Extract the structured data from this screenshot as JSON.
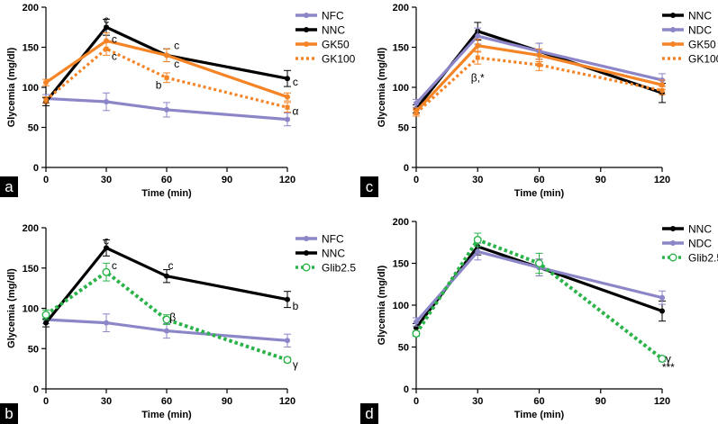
{
  "figure": {
    "colors": {
      "NFC": "#8c86c9",
      "NDC": "#8c86c9",
      "NNC": "#000000",
      "GK50": "#f58426",
      "GK100": "#f58426",
      "Glib2.5": "#2bb34a",
      "panel_letter_bg": "#000000"
    }
  },
  "chart_data": [
    {
      "panel": "a",
      "type": "line",
      "xlabel": "Time (min)",
      "ylabel": "Glycemia (mg/dl)",
      "xlim": [
        0,
        120
      ],
      "ylim": [
        0,
        200
      ],
      "xticks": [
        0,
        30,
        60,
        90,
        120
      ],
      "yticks": [
        0,
        50,
        100,
        150,
        200
      ],
      "legend_position": "top-right",
      "series": [
        {
          "name": "NFC",
          "x": [
            0,
            30,
            60,
            120
          ],
          "values": [
            86,
            82,
            72,
            60
          ],
          "errors": [
            5,
            11,
            9,
            8
          ],
          "style": "solid"
        },
        {
          "name": "NNC",
          "x": [
            0,
            30,
            60,
            120
          ],
          "values": [
            82,
            175,
            140,
            111
          ],
          "errors": [
            5,
            10,
            8,
            10
          ],
          "style": "solid"
        },
        {
          "name": "GK50",
          "x": [
            0,
            30,
            60,
            120
          ],
          "values": [
            106,
            158,
            140,
            88
          ],
          "errors": [
            4,
            10,
            8,
            5
          ],
          "style": "solid"
        },
        {
          "name": "GK100",
          "x": [
            0,
            30,
            60,
            120
          ],
          "values": [
            84,
            148,
            112,
            75
          ],
          "errors": [
            4,
            8,
            6,
            6
          ],
          "style": "dotted"
        }
      ],
      "annotations": [
        {
          "text": "c",
          "x": 30,
          "y": 184
        },
        {
          "text": "c",
          "x": 34,
          "y": 160
        },
        {
          "text": "c",
          "x": 34,
          "y": 139
        },
        {
          "text": "c",
          "x": 65,
          "y": 152
        },
        {
          "text": "c",
          "x": 65,
          "y": 129
        },
        {
          "text": "b",
          "x": 56,
          "y": 103
        },
        {
          "text": "c",
          "x": 124,
          "y": 107
        },
        {
          "text": "α",
          "x": 124,
          "y": 70
        }
      ]
    },
    {
      "panel": "b",
      "type": "line",
      "xlabel": "Time (min)",
      "ylabel": "Glycemia (mg/dl)",
      "xlim": [
        0,
        120
      ],
      "ylim": [
        0,
        200
      ],
      "xticks": [
        0,
        30,
        60,
        90,
        120
      ],
      "yticks": [
        0,
        50,
        100,
        150,
        200
      ],
      "legend_position": "right",
      "series": [
        {
          "name": "NFC",
          "x": [
            0,
            30,
            60,
            120
          ],
          "values": [
            86,
            82,
            72,
            60
          ],
          "errors": [
            5,
            11,
            9,
            8
          ],
          "style": "solid"
        },
        {
          "name": "NNC",
          "x": [
            0,
            30,
            60,
            120
          ],
          "values": [
            82,
            175,
            140,
            111
          ],
          "errors": [
            5,
            10,
            8,
            10
          ],
          "style": "solid"
        },
        {
          "name": "Glib2.5",
          "x": [
            0,
            30,
            60,
            120
          ],
          "values": [
            92,
            145,
            86,
            36
          ],
          "errors": [
            6,
            11,
            6,
            3
          ],
          "style": "dotted"
        }
      ],
      "annotations": [
        {
          "text": "c",
          "x": 30,
          "y": 184
        },
        {
          "text": "c",
          "x": 34,
          "y": 153
        },
        {
          "text": "c",
          "x": 62,
          "y": 153
        },
        {
          "text": "β",
          "x": 63,
          "y": 89
        },
        {
          "text": "b",
          "x": 124,
          "y": 103
        },
        {
          "text": "γ",
          "x": 124,
          "y": 30
        }
      ]
    },
    {
      "panel": "c",
      "type": "line",
      "xlabel": "Time (min)",
      "ylabel": "Glycemia (mg/dl)",
      "xlim": [
        0,
        120
      ],
      "ylim": [
        0,
        200
      ],
      "xticks": [
        0,
        30,
        60,
        90,
        120
      ],
      "yticks": [
        0,
        50,
        100,
        150,
        200
      ],
      "legend_position": "top-right",
      "series": [
        {
          "name": "NNC",
          "x": [
            0,
            30,
            60,
            120
          ],
          "values": [
            73,
            170,
            145,
            93
          ],
          "errors": [
            5,
            11,
            10,
            12
          ],
          "style": "solid"
        },
        {
          "name": "NDC",
          "x": [
            0,
            30,
            60,
            120
          ],
          "values": [
            80,
            164,
            145,
            109
          ],
          "errors": [
            5,
            10,
            10,
            8
          ],
          "style": "solid"
        },
        {
          "name": "GK50",
          "x": [
            0,
            30,
            60,
            120
          ],
          "values": [
            70,
            152,
            140,
            103
          ],
          "errors": [
            4,
            8,
            8,
            6
          ],
          "style": "solid"
        },
        {
          "name": "GK100",
          "x": [
            0,
            30,
            60,
            120
          ],
          "values": [
            68,
            137,
            128,
            96
          ],
          "errors": [
            4,
            8,
            7,
            5
          ],
          "style": "dotted"
        }
      ],
      "annotations": [
        {
          "text": "β,*",
          "x": 30,
          "y": 112
        }
      ]
    },
    {
      "panel": "d",
      "type": "line",
      "xlabel": "Time (min)",
      "ylabel": "Glycemia (mg/dl)",
      "xlim": [
        0,
        120
      ],
      "ylim": [
        0,
        200
      ],
      "xticks": [
        0,
        30,
        60,
        90,
        120
      ],
      "yticks": [
        0,
        50,
        100,
        150,
        200
      ],
      "legend_position": "top-right",
      "series": [
        {
          "name": "NNC",
          "x": [
            0,
            30,
            60,
            120
          ],
          "values": [
            73,
            170,
            145,
            93
          ],
          "errors": [
            5,
            10,
            10,
            12
          ],
          "style": "solid"
        },
        {
          "name": "NDC",
          "x": [
            0,
            30,
            60,
            120
          ],
          "values": [
            80,
            164,
            145,
            109
          ],
          "errors": [
            5,
            10,
            10,
            8
          ],
          "style": "solid"
        },
        {
          "name": "Glib2.5",
          "x": [
            0,
            30,
            60,
            120
          ],
          "values": [
            66,
            178,
            150,
            36
          ],
          "errors": [
            3,
            8,
            12,
            3
          ],
          "style": "dotted"
        }
      ],
      "annotations": [
        {
          "text": "γ",
          "x": 123,
          "y": 36
        },
        {
          "text": "***",
          "x": 123,
          "y": 26
        }
      ]
    }
  ]
}
